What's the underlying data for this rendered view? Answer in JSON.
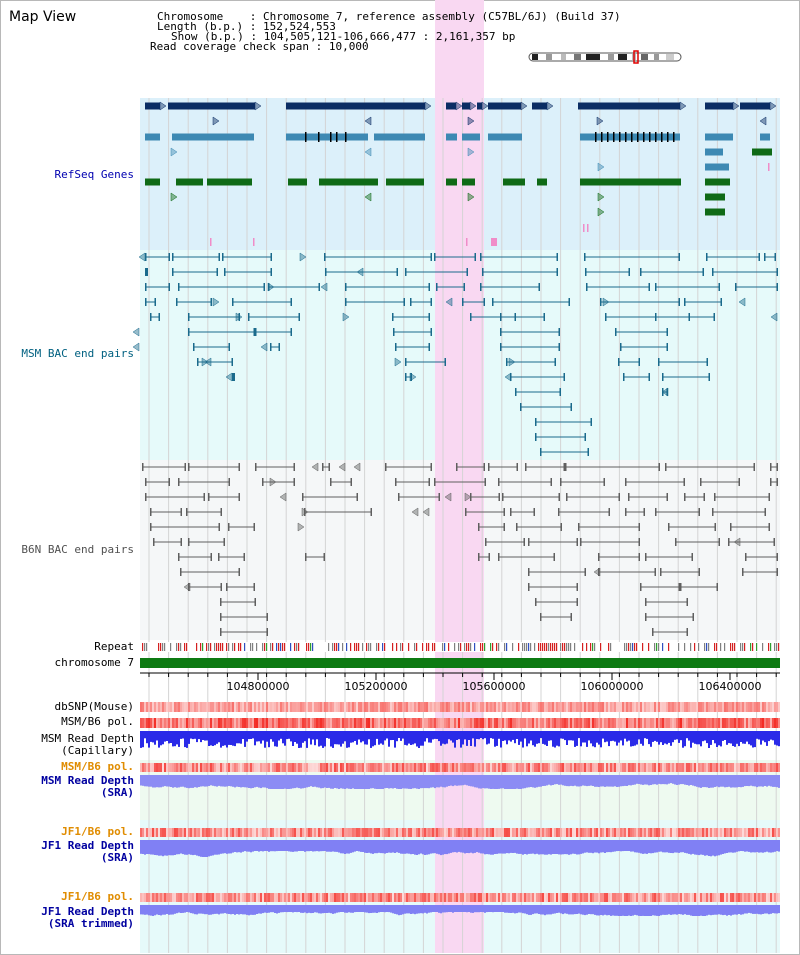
{
  "view": {
    "title": "Map View"
  },
  "info": {
    "chromosome_label": "Chromosome",
    "chromosome_value": "Chromosome 7, reference assembly (C57BL/6J) (Build 37)",
    "length_label": "Length (b.p.)",
    "length_value": "152,524,553",
    "show_label": "Show (b.p.)",
    "show_value": "104,505,121-106,666,477 : 2,161,357 bp",
    "coverage_label": "Read coverage check span",
    "coverage_value": "10,000"
  },
  "tracks": {
    "refseq": "RefSeq Genes",
    "msm_bac": "MSM BAC end pairs",
    "b6n_bac": "B6N BAC end pairs",
    "repeat": "Repeat",
    "chromosome": "chromosome 7",
    "dbsnp": "dbSNP(Mouse)",
    "msm_b6_pol": "MSM/B6 pol.",
    "msm_read_depth_cap_1": "MSM Read Depth",
    "msm_read_depth_cap_2": "(Capillary)",
    "msm_b6_pol_2": "MSM/B6 pol.",
    "msm_read_depth_sra_1": "MSM Read Depth",
    "msm_read_depth_sra_2": "(SRA)",
    "jf1_b6_pol": "JF1/B6 pol.",
    "jf1_read_depth_sra_1": "JF1 Read Depth",
    "jf1_read_depth_sra_2": "(SRA)",
    "jf1_b6_pol_2": "JF1/B6 pol.",
    "jf1_read_depth_trim_1": "JF1 Read Depth",
    "jf1_read_depth_trim_2": "(SRA trimmed)"
  },
  "axis": {
    "ticks": [
      "104800000",
      "105200000",
      "105600000",
      "106000000",
      "106400000"
    ]
  },
  "colors": {
    "refseq_bg": "#dcf0fa",
    "msm_bg": "#e6fafa",
    "b6n_bg": "#f5f7f8",
    "highlight": "#f9d8f2",
    "navy": "#0b2d64",
    "steel": "#3d89b3",
    "green": "#0f6a16",
    "teal": "#1a6a8c",
    "gray": "#5f5f5f",
    "msm_label": "#006080",
    "refseq_label": "#0000b0",
    "orange_label": "#e08c00",
    "blue_label": "#0000a0"
  }
}
